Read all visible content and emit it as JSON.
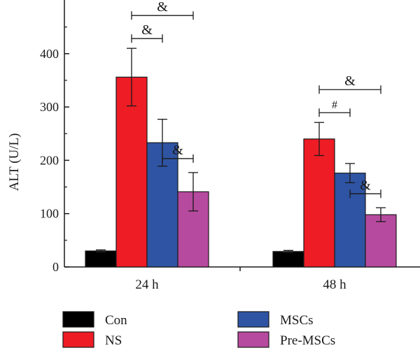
{
  "chart_data": {
    "type": "bar",
    "title": "",
    "xlabel": "",
    "ylabel": "ALT (U/L)",
    "ylim": [
      0,
      480
    ],
    "yticks": [
      0,
      100,
      200,
      300,
      400
    ],
    "categories": [
      "24 h",
      "48 h"
    ],
    "series": [
      {
        "name": "Con",
        "color": "#000000",
        "values": [
          30,
          29
        ],
        "errors": [
          2,
          2
        ]
      },
      {
        "name": "NS",
        "color": "#ee1c25",
        "values": [
          356,
          240
        ],
        "errors": [
          54,
          31
        ]
      },
      {
        "name": "MSCs",
        "color": "#2f54a3",
        "values": [
          233,
          176
        ],
        "errors": [
          44,
          18
        ]
      },
      {
        "name": "Pre-MSCs",
        "color": "#b64a9e",
        "values": [
          141,
          98
        ],
        "errors": [
          36,
          13
        ]
      }
    ],
    "legend_position": "bottom",
    "significance": [
      {
        "group": 0,
        "from": 1,
        "to": 3,
        "label": "&",
        "tier": 2
      },
      {
        "group": 0,
        "from": 1,
        "to": 2,
        "label": "&",
        "tier": 1
      },
      {
        "group": 0,
        "from": 2,
        "to": 3,
        "label": "&",
        "tier": 0
      },
      {
        "group": 1,
        "from": 1,
        "to": 3,
        "label": "&",
        "tier": 2
      },
      {
        "group": 1,
        "from": 1,
        "to": 2,
        "label": "#",
        "tier": 1
      },
      {
        "group": 1,
        "from": 2,
        "to": 3,
        "label": "&",
        "tier": 0
      }
    ]
  }
}
